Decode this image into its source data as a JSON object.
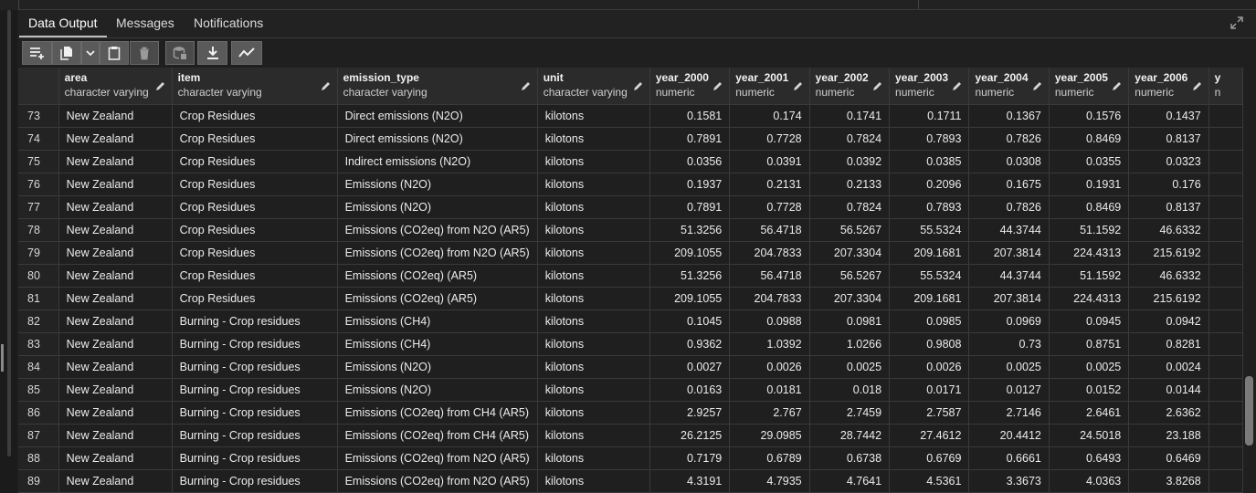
{
  "tabs": [
    {
      "label": "Data Output",
      "active": true
    },
    {
      "label": "Messages",
      "active": false
    },
    {
      "label": "Notifications",
      "active": false
    }
  ],
  "toolbar": [
    {
      "name": "add-row-icon"
    },
    {
      "name": "copy-icon"
    },
    {
      "name": "chevron-down-icon"
    },
    {
      "name": "paste-icon"
    },
    {
      "name": "delete-icon"
    },
    {
      "name": "save-data-icon"
    },
    {
      "name": "download-icon"
    },
    {
      "name": "graph-icon"
    }
  ],
  "columns": [
    {
      "name": "area",
      "type": "character varying"
    },
    {
      "name": "item",
      "type": "character varying"
    },
    {
      "name": "emission_type",
      "type": "character varying"
    },
    {
      "name": "unit",
      "type": "character varying"
    },
    {
      "name": "year_2000",
      "type": "numeric"
    },
    {
      "name": "year_2001",
      "type": "numeric"
    },
    {
      "name": "year_2002",
      "type": "numeric"
    },
    {
      "name": "year_2003",
      "type": "numeric"
    },
    {
      "name": "year_2004",
      "type": "numeric"
    },
    {
      "name": "year_2005",
      "type": "numeric"
    },
    {
      "name": "year_2006",
      "type": "numeric"
    },
    {
      "name": "y",
      "type": "n"
    }
  ],
  "rows": [
    [
      "73",
      "New Zealand",
      "Crop Residues",
      "Direct emissions (N2O)",
      "kilotons",
      "0.1581",
      "0.174",
      "0.1741",
      "0.1711",
      "0.1367",
      "0.1576",
      "0.1437"
    ],
    [
      "74",
      "New Zealand",
      "Crop Residues",
      "Direct emissions (N2O)",
      "kilotons",
      "0.7891",
      "0.7728",
      "0.7824",
      "0.7893",
      "0.7826",
      "0.8469",
      "0.8137"
    ],
    [
      "75",
      "New Zealand",
      "Crop Residues",
      "Indirect emissions (N2O)",
      "kilotons",
      "0.0356",
      "0.0391",
      "0.0392",
      "0.0385",
      "0.0308",
      "0.0355",
      "0.0323"
    ],
    [
      "76",
      "New Zealand",
      "Crop Residues",
      "Emissions (N2O)",
      "kilotons",
      "0.1937",
      "0.2131",
      "0.2133",
      "0.2096",
      "0.1675",
      "0.1931",
      "0.176"
    ],
    [
      "77",
      "New Zealand",
      "Crop Residues",
      "Emissions (N2O)",
      "kilotons",
      "0.7891",
      "0.7728",
      "0.7824",
      "0.7893",
      "0.7826",
      "0.8469",
      "0.8137"
    ],
    [
      "78",
      "New Zealand",
      "Crop Residues",
      "Emissions (CO2eq) from N2O (AR5)",
      "kilotons",
      "51.3256",
      "56.4718",
      "56.5267",
      "55.5324",
      "44.3744",
      "51.1592",
      "46.6332"
    ],
    [
      "79",
      "New Zealand",
      "Crop Residues",
      "Emissions (CO2eq) from N2O (AR5)",
      "kilotons",
      "209.1055",
      "204.7833",
      "207.3304",
      "209.1681",
      "207.3814",
      "224.4313",
      "215.6192"
    ],
    [
      "80",
      "New Zealand",
      "Crop Residues",
      "Emissions (CO2eq) (AR5)",
      "kilotons",
      "51.3256",
      "56.4718",
      "56.5267",
      "55.5324",
      "44.3744",
      "51.1592",
      "46.6332"
    ],
    [
      "81",
      "New Zealand",
      "Crop Residues",
      "Emissions (CO2eq) (AR5)",
      "kilotons",
      "209.1055",
      "204.7833",
      "207.3304",
      "209.1681",
      "207.3814",
      "224.4313",
      "215.6192"
    ],
    [
      "82",
      "New Zealand",
      "Burning - Crop residues",
      "Emissions (CH4)",
      "kilotons",
      "0.1045",
      "0.0988",
      "0.0981",
      "0.0985",
      "0.0969",
      "0.0945",
      "0.0942"
    ],
    [
      "83",
      "New Zealand",
      "Burning - Crop residues",
      "Emissions (CH4)",
      "kilotons",
      "0.9362",
      "1.0392",
      "1.0266",
      "0.9808",
      "0.73",
      "0.8751",
      "0.8281"
    ],
    [
      "84",
      "New Zealand",
      "Burning - Crop residues",
      "Emissions (N2O)",
      "kilotons",
      "0.0027",
      "0.0026",
      "0.0025",
      "0.0026",
      "0.0025",
      "0.0025",
      "0.0024"
    ],
    [
      "85",
      "New Zealand",
      "Burning - Crop residues",
      "Emissions (N2O)",
      "kilotons",
      "0.0163",
      "0.0181",
      "0.018",
      "0.0171",
      "0.0127",
      "0.0152",
      "0.0144"
    ],
    [
      "86",
      "New Zealand",
      "Burning - Crop residues",
      "Emissions (CO2eq) from CH4 (AR5)",
      "kilotons",
      "2.9257",
      "2.767",
      "2.7459",
      "2.7587",
      "2.7146",
      "2.6461",
      "2.6362"
    ],
    [
      "87",
      "New Zealand",
      "Burning - Crop residues",
      "Emissions (CO2eq) from CH4 (AR5)",
      "kilotons",
      "26.2125",
      "29.0985",
      "28.7442",
      "27.4612",
      "20.4412",
      "24.5018",
      "23.188"
    ],
    [
      "88",
      "New Zealand",
      "Burning - Crop residues",
      "Emissions (CO2eq) from N2O (AR5)",
      "kilotons",
      "0.7179",
      "0.6789",
      "0.6738",
      "0.6769",
      "0.6661",
      "0.6493",
      "0.6469"
    ],
    [
      "89",
      "New Zealand",
      "Burning - Crop residues",
      "Emissions (CO2eq) from N2O (AR5)",
      "kilotons",
      "4.3191",
      "4.7935",
      "4.7641",
      "4.5361",
      "3.3673",
      "4.0363",
      "3.8268"
    ]
  ]
}
